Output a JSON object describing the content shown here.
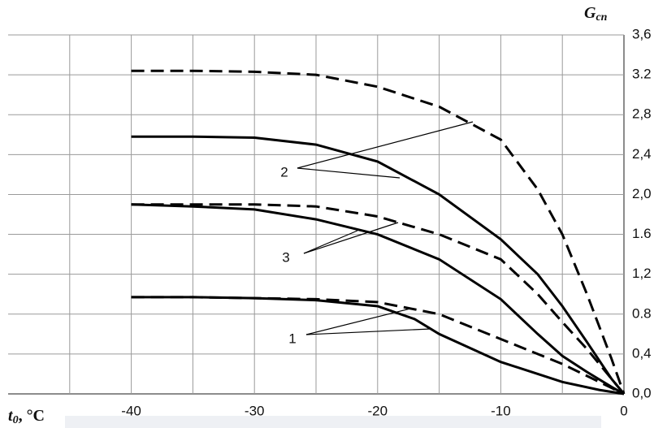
{
  "chart_data": {
    "type": "line",
    "x_label": "t",
    "x_label_sub": "0",
    "x_label_unit": ", °C",
    "y_label": "G",
    "y_label_sub": "cn",
    "xlim": [
      -50,
      0
    ],
    "xticks": [
      -40,
      -30,
      -20,
      -10,
      0
    ],
    "x_grid": [
      -45,
      -35,
      -25,
      -15,
      -5
    ],
    "ylim": [
      0,
      3.6
    ],
    "yticks": [
      {
        "value": 0,
        "label": "0,0"
      },
      {
        "value": 0.4,
        "label": "0,4"
      },
      0.8,
      {
        "value": 1.2,
        "label": "1,2"
      },
      1.6,
      {
        "value": 2.0,
        "label": "2,0"
      },
      {
        "value": 2.4,
        "label": "2,4"
      },
      {
        "value": 2.8,
        "label": "2,8"
      },
      3.2,
      {
        "value": 3.6,
        "label": "3,6"
      }
    ],
    "grid": true,
    "y_axis_side": "right",
    "annotations": [
      "2",
      "3",
      "1"
    ],
    "series": [
      {
        "color": "#000000",
        "dash": true,
        "x": [
          -40,
          -35,
          -30,
          -25,
          -20,
          -15,
          -10,
          -7,
          -5,
          -3,
          -1,
          0
        ],
        "values": [
          3.24,
          3.24,
          3.23,
          3.2,
          3.08,
          2.88,
          2.55,
          2.05,
          1.6,
          1.0,
          0.35,
          0
        ]
      },
      {
        "color": "#000000",
        "dash": false,
        "x": [
          -40,
          -35,
          -30,
          -25,
          -20,
          -15,
          -10,
          -7,
          -5,
          -3,
          -1,
          0
        ],
        "values": [
          2.58,
          2.58,
          2.57,
          2.5,
          2.33,
          2.0,
          1.55,
          1.2,
          0.88,
          0.52,
          0.15,
          0
        ]
      },
      {
        "color": "#000000",
        "dash": true,
        "x": [
          -40,
          -35,
          -30,
          -25,
          -20,
          -15,
          -10,
          -7,
          -5,
          -3,
          -1,
          0
        ],
        "values": [
          1.9,
          1.9,
          1.9,
          1.88,
          1.78,
          1.6,
          1.35,
          1.0,
          0.72,
          0.45,
          0.15,
          0
        ]
      },
      {
        "color": "#000000",
        "dash": false,
        "x": [
          -40,
          -35,
          -30,
          -25,
          -20,
          -15,
          -10,
          -7,
          -5,
          -3,
          -1,
          0
        ],
        "values": [
          1.9,
          1.88,
          1.85,
          1.75,
          1.6,
          1.35,
          0.95,
          0.6,
          0.38,
          0.22,
          0.07,
          0
        ]
      },
      {
        "color": "#000000",
        "dash": true,
        "x": [
          -40,
          -35,
          -30,
          -25,
          -20,
          -15,
          -10,
          -7,
          -5,
          -3,
          -1,
          0
        ],
        "values": [
          0.97,
          0.97,
          0.96,
          0.95,
          0.92,
          0.8,
          0.55,
          0.4,
          0.3,
          0.18,
          0.06,
          0
        ]
      },
      {
        "color": "#000000",
        "dash": false,
        "x": [
          -40,
          -35,
          -30,
          -25,
          -20,
          -17,
          -15,
          -10,
          -7,
          -5,
          -2,
          0
        ],
        "values": [
          0.97,
          0.97,
          0.96,
          0.94,
          0.88,
          0.75,
          0.6,
          0.32,
          0.2,
          0.12,
          0.04,
          0
        ]
      }
    ]
  }
}
